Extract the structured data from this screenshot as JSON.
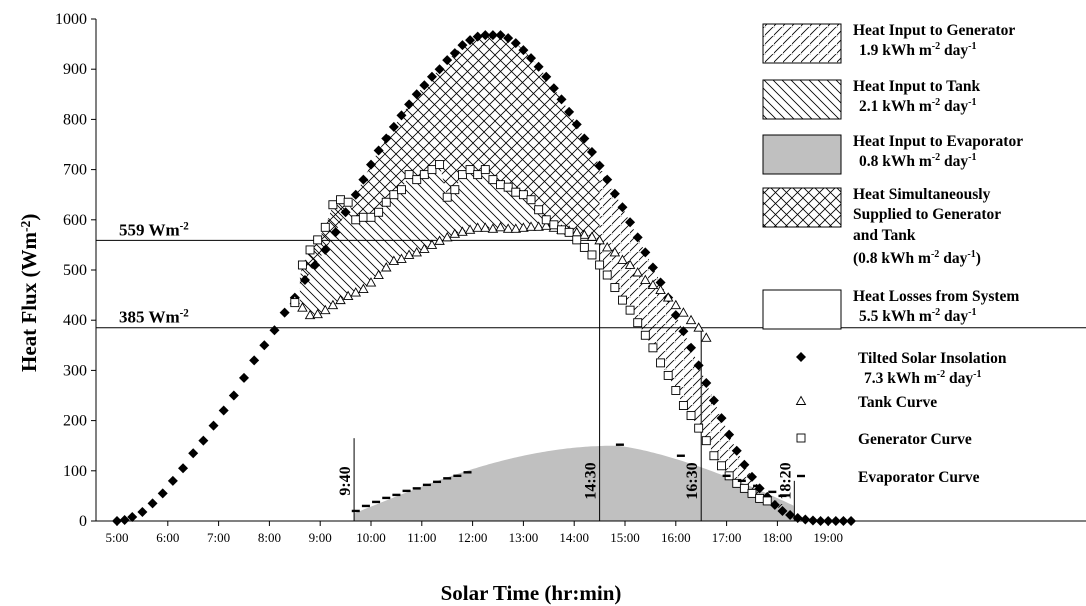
{
  "chart_data": {
    "type": "scatter",
    "xlabel": "Solar Time (hr:min)",
    "ylabel": "Heat Flux (Wm",
    "ylabel_sup": "-2",
    "ylabel_end": ")",
    "xlim": [
      4.8,
      22.5
    ],
    "ylim": [
      0,
      1000
    ],
    "x_ticks": [
      5,
      6,
      7,
      8,
      9,
      10,
      11,
      12,
      13,
      14,
      15,
      16,
      17,
      18,
      19
    ],
    "x_tick_labels": [
      "5:00",
      "6:00",
      "7:00",
      "8:00",
      "9:00",
      "10:00",
      "11:00",
      "12:00",
      "13:00",
      "14:00",
      "15:00",
      "16:00",
      "17:00",
      "18:00",
      "19:00"
    ],
    "y_ticks": [
      0,
      100,
      200,
      300,
      400,
      500,
      600,
      700,
      800,
      900,
      1000
    ],
    "reference_lines": [
      {
        "value": 559,
        "label": "559 Wm",
        "sup": "-2",
        "x_end": 14.5
      },
      {
        "value": 385,
        "label": "385 Wm",
        "sup": "-2",
        "x_end": 22.5
      }
    ],
    "vertical_lines": [
      {
        "x": 9.667,
        "top": 165,
        "label": "9:40"
      },
      {
        "x": 14.5,
        "top": 559,
        "label": "14:30"
      },
      {
        "x": 16.5,
        "top": 385,
        "label": "16:30"
      },
      {
        "x": 18.333,
        "top": 80,
        "label": "18:20"
      }
    ],
    "series": [
      {
        "name": "Tilted Solar Insolation",
        "marker": "diamond",
        "x": [
          5.0,
          5.15,
          5.3,
          5.5,
          5.7,
          5.9,
          6.1,
          6.3,
          6.5,
          6.7,
          6.9,
          7.1,
          7.3,
          7.5,
          7.7,
          7.9,
          8.1,
          8.3,
          8.5,
          8.7,
          8.9,
          9.1,
          9.3,
          9.5,
          9.7,
          9.85,
          10.0,
          10.15,
          10.3,
          10.45,
          10.6,
          10.75,
          10.9,
          11.05,
          11.2,
          11.35,
          11.5,
          11.65,
          11.8,
          11.95,
          12.1,
          12.25,
          12.4,
          12.55,
          12.7,
          12.85,
          13.0,
          13.15,
          13.3,
          13.45,
          13.6,
          13.75,
          13.9,
          14.05,
          14.2,
          14.35,
          14.5,
          14.65,
          14.8,
          14.95,
          15.1,
          15.25,
          15.4,
          15.55,
          15.7,
          15.85,
          16.0,
          16.15,
          16.3,
          16.45,
          16.6,
          16.75,
          16.9,
          17.05,
          17.2,
          17.35,
          17.5,
          17.65,
          17.8,
          17.95,
          18.1,
          18.25,
          18.4,
          18.55,
          18.7,
          18.85,
          19.0,
          19.15,
          19.3,
          19.45
        ],
        "values": [
          0,
          2,
          8,
          18,
          35,
          55,
          80,
          105,
          135,
          160,
          190,
          220,
          250,
          285,
          320,
          350,
          380,
          415,
          445,
          480,
          510,
          540,
          575,
          615,
          650,
          680,
          710,
          738,
          762,
          785,
          808,
          830,
          850,
          868,
          885,
          900,
          918,
          932,
          948,
          958,
          965,
          968,
          968,
          968,
          962,
          952,
          938,
          922,
          905,
          885,
          862,
          840,
          815,
          790,
          762,
          735,
          708,
          680,
          652,
          625,
          595,
          565,
          535,
          505,
          475,
          445,
          410,
          378,
          345,
          310,
          275,
          240,
          205,
          172,
          140,
          112,
          88,
          65,
          48,
          32,
          20,
          12,
          6,
          3,
          1,
          0,
          0,
          0,
          0,
          0
        ]
      },
      {
        "name": "Tank Curve",
        "marker": "triangle",
        "x": [
          8.5,
          8.65,
          8.8,
          8.95,
          9.1,
          9.25,
          9.4,
          9.55,
          9.7,
          9.85,
          10.0,
          10.15,
          10.3,
          10.45,
          10.6,
          10.75,
          10.9,
          11.05,
          11.2,
          11.35,
          11.5,
          11.65,
          11.8,
          11.95,
          12.1,
          12.25,
          12.4,
          12.55,
          12.7,
          12.85,
          13.0,
          13.15,
          13.3,
          13.45,
          13.6,
          13.75,
          13.9,
          14.05,
          14.2,
          14.35,
          14.5,
          14.65,
          14.8,
          14.95,
          15.1,
          15.25,
          15.4,
          15.55,
          15.7,
          15.85,
          16.0,
          16.15,
          16.3,
          16.45,
          16.6
        ],
        "values": [
          440,
          425,
          410,
          412,
          420,
          430,
          440,
          448,
          455,
          462,
          475,
          490,
          505,
          518,
          522,
          530,
          535,
          542,
          550,
          558,
          565,
          572,
          576,
          580,
          584,
          584,
          582,
          585,
          582,
          582,
          584,
          586,
          586,
          588,
          584,
          580,
          578,
          575,
          570,
          566,
          559,
          545,
          535,
          520,
          510,
          495,
          480,
          470,
          460,
          445,
          430,
          415,
          400,
          385,
          365
        ]
      },
      {
        "name": "Generator Curve",
        "marker": "square",
        "x": [
          8.5,
          8.65,
          8.8,
          8.95,
          9.1,
          9.25,
          9.4,
          9.55,
          9.7,
          9.85,
          10.0,
          10.15,
          10.3,
          10.45,
          10.6,
          10.75,
          10.9,
          11.05,
          11.2,
          11.35,
          11.5,
          11.65,
          11.8,
          11.95,
          12.1,
          12.25,
          12.4,
          12.55,
          12.7,
          12.85,
          13.0,
          13.15,
          13.3,
          13.45,
          13.6,
          13.75,
          13.9,
          14.05,
          14.2,
          14.35,
          14.5,
          14.65,
          14.8,
          14.95,
          15.1,
          15.25,
          15.4,
          15.55,
          15.7,
          15.85,
          16.0,
          16.15,
          16.3,
          16.45,
          16.6,
          16.75,
          16.9,
          17.05,
          17.2,
          17.35,
          17.5,
          17.65,
          17.8
        ],
        "values": [
          435,
          510,
          540,
          560,
          585,
          630,
          640,
          635,
          600,
          605,
          605,
          615,
          635,
          650,
          660,
          690,
          680,
          690,
          700,
          710,
          645,
          660,
          690,
          700,
          690,
          700,
          680,
          670,
          665,
          655,
          650,
          640,
          620,
          600,
          590,
          580,
          575,
          560,
          545,
          530,
          510,
          490,
          465,
          440,
          420,
          395,
          370,
          345,
          315,
          290,
          260,
          230,
          210,
          185,
          160,
          130,
          110,
          90,
          75,
          65,
          55,
          45,
          40
        ]
      },
      {
        "name": "Evaporator Curve",
        "marker": "dash",
        "x": [
          9.7,
          9.9,
          10.1,
          10.3,
          10.5,
          10.7,
          10.9,
          11.1,
          11.3,
          11.5,
          11.7,
          11.9,
          14.9,
          16.1,
          17.0,
          17.3,
          17.6,
          17.9,
          18.1
        ],
        "values": [
          20,
          30,
          38,
          46,
          52,
          60,
          65,
          72,
          78,
          85,
          90,
          97,
          152,
          130,
          90,
          80,
          70,
          58,
          50
        ]
      }
    ],
    "legend": [
      {
        "fill": "hatch-fwd",
        "text": "Heat Input to Generator",
        "value": "1.9 kWh m",
        "value_sup": "-2",
        "value_day": " day",
        "value_day_sup": "-1"
      },
      {
        "fill": "hatch-back",
        "text": "Heat Input to Tank",
        "value": "2.1 kWh m",
        "value_sup": "-2",
        "value_day": " day",
        "value_day_sup": "-1"
      },
      {
        "fill": "gray",
        "text": "Heat Input to Evaporator",
        "value": "0.8 kWh m",
        "value_sup": "-2",
        "value_day": " day",
        "value_day_sup": "-1"
      },
      {
        "fill": "hatch-cross",
        "text": "Heat Simultaneously",
        "line2": "Supplied to Generator",
        "line3": "and Tank",
        "line4": "(0.8 kWh m",
        "line4_sup": "-2",
        "line4_day": " day",
        "line4_day_sup": "-1",
        "line4_end": ")"
      },
      {
        "fill": "empty",
        "text": "Heat Losses from System",
        "value": "5.5 kWh m",
        "value_sup": "-2",
        "value_day": " day",
        "value_day_sup": "-1"
      },
      {
        "marker": "diamond",
        "text": "Tilted Solar Insolation",
        "value": "7.3 kWh m",
        "value_sup": "-2",
        "value_day": " day",
        "value_day_sup": "-1"
      },
      {
        "marker": "triangle",
        "text": "Tank Curve"
      },
      {
        "marker": "square",
        "text": "Generator Curve"
      },
      {
        "marker": "dash",
        "text": "Evaporator Curve"
      }
    ],
    "colors": {
      "gray_fill": "#c0c0c0",
      "line": "#000000"
    }
  }
}
